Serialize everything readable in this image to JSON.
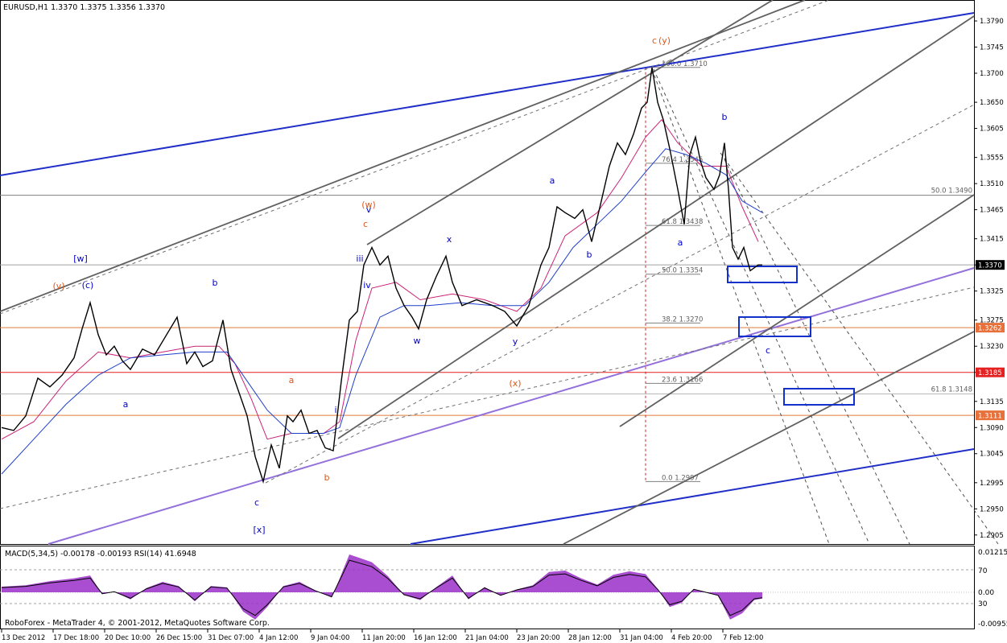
{
  "window": {
    "header": "EURUSD,H1  1.3370 1.3375 1.3356 1.3370",
    "footer": "RoboForex - MetaTrader 4, © 2001-2012, MetaQuotes Software Corp."
  },
  "indicator": {
    "header": "MACD(5,34,5) -0.00178 -0.00193  RSI(14) 41.6948",
    "ticks": [
      "0.01215",
      "70",
      "0.00",
      "30",
      "-0.00955"
    ]
  },
  "colors": {
    "price": "#000000",
    "wave_blue": "#0000cc",
    "wave_orange": "#e0561a",
    "channel_blue": "#1f2fc8",
    "channel_violet": "#9370db",
    "channel_gray": "#606060",
    "level_red": "#e52020",
    "level_orange": "#e07a3a",
    "macd_fill": "#9a2fc8",
    "ma_fast": "#cc2277",
    "ma_slow": "#1f3fcc",
    "target_box": "#1230cc"
  },
  "chart_data": {
    "type": "line",
    "symbol": "EURUSD",
    "timeframe": "H1",
    "title": "EURUSD,H1",
    "ohlc_last": {
      "open": 1.337,
      "high": 1.3375,
      "low": 1.3356,
      "close": 1.337
    },
    "x_ticks": [
      "13 Dec 2012",
      "17 Dec 18:00",
      "20 Dec 10:00",
      "26 Dec 15:00",
      "31 Dec 07:00",
      "4 Jan 12:00",
      "9 Jan 04:00",
      "11 Jan 20:00",
      "16 Jan 12:00",
      "21 Jan 04:00",
      "23 Jan 20:00",
      "28 Jan 12:00",
      "31 Jan 04:00",
      "4 Feb 20:00",
      "7 Feb 12:00"
    ],
    "y_ticks": [
      "1.3790",
      "1.3745",
      "1.3700",
      "1.3650",
      "1.3605",
      "1.3555",
      "1.3510",
      "1.3465",
      "1.3415",
      "1.3370",
      "1.3325",
      "1.3275",
      "1.3230",
      "1.3185",
      "1.3135",
      "1.3090",
      "1.3045",
      "1.2995",
      "1.2950",
      "1.2905"
    ],
    "ylim": [
      1.2895,
      1.3815
    ],
    "price_path": [
      [
        0,
        1.309
      ],
      [
        15,
        1.3085
      ],
      [
        30,
        1.311
      ],
      [
        45,
        1.3175
      ],
      [
        60,
        1.316
      ],
      [
        75,
        1.318
      ],
      [
        90,
        1.321
      ],
      [
        100,
        1.326
      ],
      [
        110,
        1.3305
      ],
      [
        120,
        1.325
      ],
      [
        130,
        1.3215
      ],
      [
        140,
        1.323
      ],
      [
        150,
        1.3205
      ],
      [
        160,
        1.319
      ],
      [
        175,
        1.3225
      ],
      [
        190,
        1.3215
      ],
      [
        205,
        1.325
      ],
      [
        218,
        1.328
      ],
      [
        230,
        1.32
      ],
      [
        240,
        1.322
      ],
      [
        250,
        1.3195
      ],
      [
        262,
        1.3205
      ],
      [
        275,
        1.3275
      ],
      [
        285,
        1.319
      ],
      [
        295,
        1.315
      ],
      [
        305,
        1.311
      ],
      [
        315,
        1.304
      ],
      [
        325,
        1.2997
      ],
      [
        335,
        1.306
      ],
      [
        345,
        1.302
      ],
      [
        355,
        1.311
      ],
      [
        362,
        1.31
      ],
      [
        372,
        1.312
      ],
      [
        382,
        1.308
      ],
      [
        392,
        1.3085
      ],
      [
        402,
        1.3055
      ],
      [
        412,
        1.305
      ],
      [
        422,
        1.317
      ],
      [
        432,
        1.3275
      ],
      [
        442,
        1.329
      ],
      [
        450,
        1.337
      ],
      [
        460,
        1.34
      ],
      [
        470,
        1.337
      ],
      [
        480,
        1.3385
      ],
      [
        490,
        1.333
      ],
      [
        500,
        1.33
      ],
      [
        510,
        1.328
      ],
      [
        518,
        1.326
      ],
      [
        528,
        1.331
      ],
      [
        540,
        1.335
      ],
      [
        552,
        1.3385
      ],
      [
        560,
        1.334
      ],
      [
        572,
        1.33
      ],
      [
        590,
        1.331
      ],
      [
        610,
        1.33
      ],
      [
        625,
        1.329
      ],
      [
        640,
        1.3265
      ],
      [
        655,
        1.33
      ],
      [
        670,
        1.337
      ],
      [
        680,
        1.34
      ],
      [
        690,
        1.347
      ],
      [
        700,
        1.346
      ],
      [
        712,
        1.345
      ],
      [
        722,
        1.3465
      ],
      [
        733,
        1.341
      ],
      [
        745,
        1.348
      ],
      [
        755,
        1.354
      ],
      [
        765,
        1.358
      ],
      [
        775,
        1.356
      ],
      [
        785,
        1.3595
      ],
      [
        795,
        1.364
      ],
      [
        802,
        1.365
      ],
      [
        808,
        1.371
      ],
      [
        815,
        1.365
      ],
      [
        822,
        1.362
      ],
      [
        830,
        1.357
      ],
      [
        840,
        1.35
      ],
      [
        848,
        1.344
      ],
      [
        855,
        1.356
      ],
      [
        862,
        1.359
      ],
      [
        868,
        1.355
      ],
      [
        875,
        1.352
      ],
      [
        885,
        1.35
      ],
      [
        892,
        1.3525
      ],
      [
        898,
        1.358
      ],
      [
        903,
        1.35
      ],
      [
        908,
        1.34
      ],
      [
        915,
        1.338
      ],
      [
        922,
        1.34
      ],
      [
        930,
        1.336
      ],
      [
        940,
        1.337
      ],
      [
        945,
        1.337
      ]
    ],
    "moving_averages": [
      {
        "color": "#cc2277",
        "values": [
          [
            0,
            1.307
          ],
          [
            40,
            1.31
          ],
          [
            80,
            1.317
          ],
          [
            120,
            1.322
          ],
          [
            160,
            1.321
          ],
          [
            200,
            1.322
          ],
          [
            240,
            1.323
          ],
          [
            270,
            1.323
          ],
          [
            290,
            1.32
          ],
          [
            310,
            1.314
          ],
          [
            330,
            1.307
          ],
          [
            360,
            1.308
          ],
          [
            400,
            1.308
          ],
          [
            420,
            1.31
          ],
          [
            440,
            1.324
          ],
          [
            460,
            1.333
          ],
          [
            490,
            1.334
          ],
          [
            520,
            1.331
          ],
          [
            560,
            1.332
          ],
          [
            600,
            1.331
          ],
          [
            640,
            1.329
          ],
          [
            670,
            1.333
          ],
          [
            700,
            1.342
          ],
          [
            740,
            1.346
          ],
          [
            770,
            1.352
          ],
          [
            800,
            1.359
          ],
          [
            820,
            1.362
          ],
          [
            840,
            1.358
          ],
          [
            870,
            1.354
          ],
          [
            900,
            1.354
          ],
          [
            920,
            1.347
          ],
          [
            940,
            1.341
          ]
        ]
      },
      {
        "color": "#1f3fcc",
        "values": [
          [
            0,
            1.301
          ],
          [
            40,
            1.307
          ],
          [
            80,
            1.313
          ],
          [
            120,
            1.318
          ],
          [
            160,
            1.321
          ],
          [
            200,
            1.3215
          ],
          [
            240,
            1.322
          ],
          [
            280,
            1.322
          ],
          [
            300,
            1.318
          ],
          [
            330,
            1.312
          ],
          [
            360,
            1.308
          ],
          [
            400,
            1.308
          ],
          [
            420,
            1.309
          ],
          [
            440,
            1.318
          ],
          [
            470,
            1.328
          ],
          [
            500,
            1.33
          ],
          [
            530,
            1.33
          ],
          [
            570,
            1.3305
          ],
          [
            610,
            1.33
          ],
          [
            650,
            1.33
          ],
          [
            680,
            1.334
          ],
          [
            710,
            1.34
          ],
          [
            740,
            1.344
          ],
          [
            770,
            1.348
          ],
          [
            800,
            1.353
          ],
          [
            825,
            1.357
          ],
          [
            850,
            1.356
          ],
          [
            875,
            1.3545
          ],
          [
            900,
            1.3525
          ],
          [
            920,
            1.348
          ],
          [
            945,
            1.346
          ]
        ]
      }
    ],
    "levels": [
      {
        "price": 1.3262,
        "label": "1.3262",
        "color": "#e07a3a"
      },
      {
        "price": 1.3185,
        "label": "1.3185",
        "color": "#e52020"
      },
      {
        "price": 1.3111,
        "label": "1.3111",
        "color": "#e07a3a"
      },
      {
        "price": 1.349,
        "label": "50.0 1.3490",
        "color": "#808080"
      },
      {
        "price": 1.337,
        "label": "1.3370",
        "color": "#a0a0a0"
      }
    ],
    "fibonacci": [
      {
        "label": "100.0 1.3710",
        "price": 1.371
      },
      {
        "label": "76.4 1.3545",
        "price": 1.3545
      },
      {
        "label": "61.8 1.3438",
        "price": 1.3438
      },
      {
        "label": "50.0 1.3354",
        "price": 1.3354
      },
      {
        "label": "38.2 1.3270",
        "price": 1.327
      },
      {
        "label": "23.6 1.3166",
        "price": 1.3166
      },
      {
        "label": "0.0 1.2997",
        "price": 1.2997
      },
      {
        "label": "61.8 1.3148",
        "price": 1.3148
      }
    ],
    "wave_labels": [
      {
        "text": "[w]",
        "color": "#0000cc"
      },
      {
        "text": "(v)",
        "color": "#e0561a"
      },
      {
        "text": "(c)",
        "color": "#0000cc"
      },
      {
        "text": "b",
        "color": "#0000cc"
      },
      {
        "text": "a",
        "color": "#0000cc"
      },
      {
        "text": "c",
        "color": "#0000cc"
      },
      {
        "text": "[x]",
        "color": "#0000cc"
      },
      {
        "text": "a",
        "color": "#e0561a"
      },
      {
        "text": "b",
        "color": "#e0561a"
      },
      {
        "text": "i",
        "color": "#0000cc"
      },
      {
        "text": "(w)",
        "color": "#e0561a"
      },
      {
        "text": "c",
        "color": "#e0561a"
      },
      {
        "text": "v",
        "color": "#0000cc"
      },
      {
        "text": "iii",
        "color": "#0000cc"
      },
      {
        "text": "iv",
        "color": "#0000cc"
      },
      {
        "text": "x",
        "color": "#0000cc"
      },
      {
        "text": "w",
        "color": "#0000cc"
      },
      {
        "text": "y",
        "color": "#0000cc"
      },
      {
        "text": "(x)",
        "color": "#e0561a"
      },
      {
        "text": "a",
        "color": "#0000cc"
      },
      {
        "text": "b",
        "color": "#0000cc"
      },
      {
        "text": "c",
        "color": "#e0561a"
      },
      {
        "text": "(y)",
        "color": "#e0561a"
      },
      {
        "text": "a",
        "color": "#0000cc"
      },
      {
        "text": "b",
        "color": "#0000cc"
      },
      {
        "text": "c",
        "color": "#0000cc"
      }
    ],
    "indicator": {
      "macd": [
        [
          0,
          0.0016
        ],
        [
          30,
          0.002
        ],
        [
          60,
          0.0032
        ],
        [
          90,
          0.004
        ],
        [
          110,
          0.0048
        ],
        [
          125,
          -0.0005
        ],
        [
          140,
          0.0002
        ],
        [
          160,
          -0.002
        ],
        [
          180,
          0.0012
        ],
        [
          200,
          0.003
        ],
        [
          220,
          0.0018
        ],
        [
          240,
          -0.0026
        ],
        [
          260,
          0.0018
        ],
        [
          280,
          0.0014
        ],
        [
          300,
          -0.0055
        ],
        [
          315,
          -0.0078
        ],
        [
          330,
          -0.0042
        ],
        [
          350,
          0.0018
        ],
        [
          370,
          0.003
        ],
        [
          390,
          0.0005
        ],
        [
          410,
          -0.0015
        ],
        [
          420,
          0.004
        ],
        [
          432,
          0.0108
        ],
        [
          445,
          0.0098
        ],
        [
          460,
          0.0086
        ],
        [
          480,
          0.0046
        ],
        [
          500,
          -0.0008
        ],
        [
          520,
          -0.0022
        ],
        [
          540,
          0.0015
        ],
        [
          560,
          0.0048
        ],
        [
          580,
          -0.002
        ],
        [
          600,
          0.0015
        ],
        [
          620,
          -0.001
        ],
        [
          640,
          0.0008
        ],
        [
          660,
          0.002
        ],
        [
          680,
          0.0058
        ],
        [
          700,
          0.0062
        ],
        [
          720,
          0.004
        ],
        [
          740,
          0.0022
        ],
        [
          760,
          0.005
        ],
        [
          780,
          0.006
        ],
        [
          800,
          0.0052
        ],
        [
          815,
          0.001
        ],
        [
          830,
          -0.0042
        ],
        [
          845,
          -0.003
        ],
        [
          860,
          0.001
        ],
        [
          875,
          0.0
        ],
        [
          890,
          -0.001
        ],
        [
          905,
          -0.0078
        ],
        [
          920,
          -0.006
        ],
        [
          935,
          -0.0022
        ],
        [
          945,
          -0.0018
        ]
      ]
    }
  }
}
